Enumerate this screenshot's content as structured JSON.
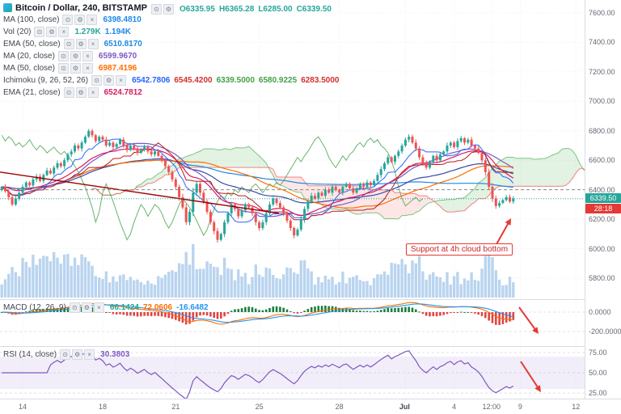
{
  "legend": {
    "title_row": {
      "symbol": "Bitcoin / Dollar, 240, BITSTAMP",
      "ohlc": [
        {
          "text": "O6335.95"
        },
        {
          "text": "H6365.28"
        },
        {
          "text": "L6285.00"
        },
        {
          "text": "C6339.50"
        }
      ],
      "ohlc_color": "#26a69a"
    },
    "buttons": [
      "eye",
      "settings",
      "close"
    ],
    "rows": [
      {
        "label": "MA (100, close)",
        "values": [
          {
            "text": "6398.4810",
            "color": "#1E88E5"
          }
        ]
      },
      {
        "label": "Vol (20)",
        "values": [
          {
            "text": "1.279K",
            "color": "#26a69a"
          },
          {
            "text": "1.194K",
            "color": "#1E88E5"
          }
        ]
      },
      {
        "label": "EMA (50, close)",
        "values": [
          {
            "text": "6510.8170",
            "color": "#1E88E5"
          }
        ]
      },
      {
        "label": "MA (20, close)",
        "values": [
          {
            "text": "6599.9670",
            "color": "#7E57C2"
          }
        ]
      },
      {
        "label": "MA (50, close)",
        "values": [
          {
            "text": "6987.4196",
            "color": "#FF6D00"
          }
        ]
      },
      {
        "label": "Ichimoku (9, 26, 52, 26)",
        "values": [
          {
            "text": "6542.7806",
            "color": "#2962FF"
          },
          {
            "text": "6545.4200",
            "color": "#D32F2F"
          },
          {
            "text": "6339.5000",
            "color": "#43A047"
          },
          {
            "text": "6580.9225",
            "color": "#43A047"
          },
          {
            "text": "6283.5000",
            "color": "#D32F2F"
          }
        ]
      },
      {
        "label": "EMA (21, close)",
        "values": [
          {
            "text": "6524.7812",
            "color": "#D81B60"
          }
        ]
      }
    ]
  },
  "macd_legend": {
    "label": "MACD (12, 26, 9)",
    "values": [
      {
        "text": "66.1424",
        "color": "#26a69a"
      },
      {
        "text": "72.0606",
        "color": "#FF6D00"
      },
      {
        "text": "-16.6482",
        "color": "#2196F3"
      }
    ]
  },
  "rsi_legend": {
    "label": "RSI (14, close)",
    "values": [
      {
        "text": "30.3803",
        "color": "#7E57C2"
      }
    ]
  },
  "annotation": {
    "text": "Support at 4h cloud bottom"
  },
  "price_axis": {
    "labels": [
      {
        "text": "7600.00",
        "value": 7600
      },
      {
        "text": "7400.00",
        "value": 7400
      },
      {
        "text": "7200.00",
        "value": 7200
      },
      {
        "text": "7000.00",
        "value": 7000
      },
      {
        "text": "6800.00",
        "value": 6800
      },
      {
        "text": "6600.00",
        "value": 6600
      },
      {
        "text": "6400.00",
        "value": 6400
      },
      {
        "text": "6200.00",
        "value": 6200
      },
      {
        "text": "6000.00",
        "value": 6000
      },
      {
        "text": "5800.00",
        "value": 5800
      }
    ],
    "last_price": {
      "text": "6339.50",
      "value": 6339.5,
      "color": "#26a69a"
    },
    "countdown": {
      "text": "28:18",
      "color": "#e53935"
    },
    "macd_labels": [
      {
        "text": "0.0000",
        "value": 0
      },
      {
        "text": "-200.0000",
        "value": -200
      }
    ],
    "rsi_labels": [
      {
        "text": "75.00",
        "value": 75
      },
      {
        "text": "50.00",
        "value": 50
      },
      {
        "text": "25.00",
        "value": 25
      }
    ]
  },
  "time_axis": {
    "labels": [
      {
        "text": "14",
        "slot": 6
      },
      {
        "text": "18",
        "slot": 29
      },
      {
        "text": "21",
        "slot": 50
      },
      {
        "text": "25",
        "slot": 74
      },
      {
        "text": "28",
        "slot": 97
      },
      {
        "text": "Jul",
        "slot": 116
      },
      {
        "text": "4",
        "slot": 130
      },
      {
        "text": "12:00",
        "slot": 141
      },
      {
        "text": "9",
        "slot": 149
      },
      {
        "text": "12",
        "slot": 165
      }
    ]
  },
  "chart_data": {
    "type": "candlestick",
    "title": "Bitcoin / Dollar, 240, BITSTAMP",
    "symbol": "Bitcoin / Dollar",
    "interval": "240",
    "exchange": "BITSTAMP",
    "last_ohlc": {
      "open": 6335.95,
      "high": 6365.28,
      "low": 6285.0,
      "close": 6339.5
    },
    "ylim": [
      5800,
      7600
    ],
    "total_slots": 168,
    "closes": [
      6420,
      6390,
      6350,
      6300,
      6340,
      6380,
      6420,
      6450,
      6430,
      6470,
      6490,
      6460,
      6500,
      6530,
      6510,
      6550,
      6580,
      6560,
      6600,
      6640,
      6660,
      6700,
      6680,
      6720,
      6760,
      6800,
      6770,
      6730,
      6760,
      6740,
      6700,
      6720,
      6690,
      6710,
      6740,
      6700,
      6670,
      6700,
      6680,
      6650,
      6670,
      6690,
      6660,
      6640,
      6660,
      6630,
      6600,
      6560,
      6520,
      6470,
      6420,
      6350,
      6280,
      6180,
      6250,
      6380,
      6440,
      6380,
      6320,
      6250,
      6180,
      6120,
      6060,
      6100,
      6180,
      6240,
      6300,
      6270,
      6220,
      6260,
      6300,
      6280,
      6240,
      6180,
      6140,
      6180,
      6240,
      6300,
      6340,
      6310,
      6280,
      6240,
      6190,
      6140,
      6090,
      6130,
      6200,
      6270,
      6320,
      6360,
      6340,
      6380,
      6360,
      6400,
      6380,
      6420,
      6400,
      6380,
      6420,
      6440,
      6410,
      6380,
      6410,
      6440,
      6420,
      6450,
      6430,
      6460,
      6500,
      6540,
      6580,
      6620,
      6590,
      6630,
      6660,
      6700,
      6740,
      6760,
      6720,
      6680,
      6620,
      6580,
      6550,
      6590,
      6630,
      6600,
      6640,
      6660,
      6700,
      6720,
      6690,
      6730,
      6750,
      6720,
      6740,
      6700,
      6680,
      6650,
      6600,
      6520,
      6420,
      6340,
      6290,
      6310,
      6330,
      6350,
      6320,
      6339.5
    ],
    "indicators_shown": [
      "MA 100",
      "Vol 20",
      "EMA 50",
      "MA 20",
      "MA 50",
      "Ichimoku 9 26 52 26",
      "EMA 21",
      "MACD 12 26 9",
      "RSI 14"
    ],
    "panes": {
      "macd": {
        "macd": 66.1424,
        "signal": 72.0606,
        "hist": -16.6482,
        "axis": [
          0,
          -200
        ]
      },
      "rsi": {
        "value": 30.3803,
        "axis": [
          75,
          50,
          25
        ]
      }
    },
    "colors": {
      "up": "#26a69a",
      "down": "#ef5350",
      "cloud_bull": "rgba(76,175,80,0.16)",
      "cloud_bear": "rgba(239,83,80,0.14)",
      "volume": "rgba(100,160,220,0.45)",
      "ma20": "#7E57C2",
      "ma50": "#FF6D00",
      "ma100": "#1E88E5",
      "ema21": "#D81B60",
      "ema50": "#3949AB",
      "tenkan": "#2962FF",
      "kijun": "#B71C1C",
      "chikou": "#43A047",
      "rsi_line": "#7E57C2",
      "macd_line": "#FF6D00",
      "signal_line": "#2196F3",
      "hist_pos": "#1b7e3c",
      "hist_neg": "#e04444",
      "arrow": "#e53935",
      "trendline": "#990000"
    }
  }
}
